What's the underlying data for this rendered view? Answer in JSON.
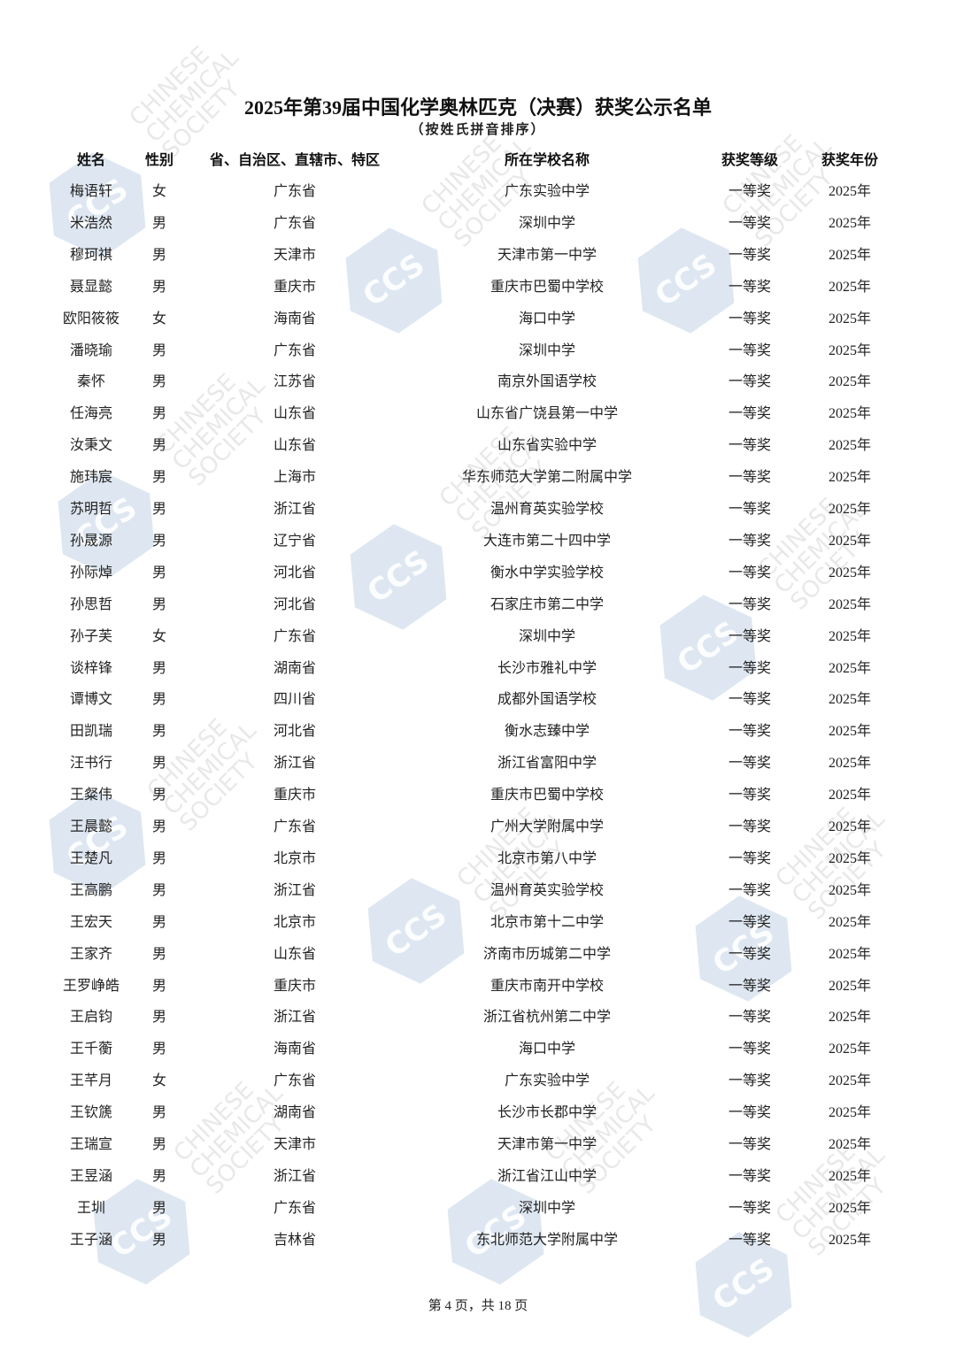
{
  "document": {
    "title": "2025年第39届中国化学奥林匹克（决赛）获奖公示名单",
    "subtitle": "（按姓氏拼音排序）",
    "footer": "第 4 页，共 18 页",
    "watermark_logo": "CCS",
    "watermark_text": "CHINESE\nCHEMICAL\nSOCIETY"
  },
  "table": {
    "headers": [
      "姓名",
      "性别",
      "省、自治区、直辖市、特区",
      "所在学校名称",
      "获奖等级",
      "获奖年份"
    ],
    "rows": [
      [
        "梅语轩",
        "女",
        "广东省",
        "广东实验中学",
        "一等奖",
        "2025年"
      ],
      [
        "米浩然",
        "男",
        "广东省",
        "深圳中学",
        "一等奖",
        "2025年"
      ],
      [
        "穆珂祺",
        "男",
        "天津市",
        "天津市第一中学",
        "一等奖",
        "2025年"
      ],
      [
        "聂显懿",
        "男",
        "重庆市",
        "重庆市巴蜀中学校",
        "一等奖",
        "2025年"
      ],
      [
        "欧阳筱筱",
        "女",
        "海南省",
        "海口中学",
        "一等奖",
        "2025年"
      ],
      [
        "潘晓瑜",
        "男",
        "广东省",
        "深圳中学",
        "一等奖",
        "2025年"
      ],
      [
        "秦怀",
        "男",
        "江苏省",
        "南京外国语学校",
        "一等奖",
        "2025年"
      ],
      [
        "任海亮",
        "男",
        "山东省",
        "山东省广饶县第一中学",
        "一等奖",
        "2025年"
      ],
      [
        "汝秉文",
        "男",
        "山东省",
        "山东省实验中学",
        "一等奖",
        "2025年"
      ],
      [
        "施玮宸",
        "男",
        "上海市",
        "华东师范大学第二附属中学",
        "一等奖",
        "2025年"
      ],
      [
        "苏明哲",
        "男",
        "浙江省",
        "温州育英实验学校",
        "一等奖",
        "2025年"
      ],
      [
        "孙晟源",
        "男",
        "辽宁省",
        "大连市第二十四中学",
        "一等奖",
        "2025年"
      ],
      [
        "孙际焯",
        "男",
        "河北省",
        "衡水中学实验学校",
        "一等奖",
        "2025年"
      ],
      [
        "孙思哲",
        "男",
        "河北省",
        "石家庄市第二中学",
        "一等奖",
        "2025年"
      ],
      [
        "孙子芙",
        "女",
        "广东省",
        "深圳中学",
        "一等奖",
        "2025年"
      ],
      [
        "谈梓锋",
        "男",
        "湖南省",
        "长沙市雅礼中学",
        "一等奖",
        "2025年"
      ],
      [
        "谭博文",
        "男",
        "四川省",
        "成都外国语学校",
        "一等奖",
        "2025年"
      ],
      [
        "田凯瑞",
        "男",
        "河北省",
        "衡水志臻中学",
        "一等奖",
        "2025年"
      ],
      [
        "汪书行",
        "男",
        "浙江省",
        "浙江省富阳中学",
        "一等奖",
        "2025年"
      ],
      [
        "王粲伟",
        "男",
        "重庆市",
        "重庆市巴蜀中学校",
        "一等奖",
        "2025年"
      ],
      [
        "王晨懿",
        "男",
        "广东省",
        "广州大学附属中学",
        "一等奖",
        "2025年"
      ],
      [
        "王楚凡",
        "男",
        "北京市",
        "北京市第八中学",
        "一等奖",
        "2025年"
      ],
      [
        "王高鹏",
        "男",
        "浙江省",
        "温州育英实验学校",
        "一等奖",
        "2025年"
      ],
      [
        "王宏天",
        "男",
        "北京市",
        "北京市第十二中学",
        "一等奖",
        "2025年"
      ],
      [
        "王家齐",
        "男",
        "山东省",
        "济南市历城第二中学",
        "一等奖",
        "2025年"
      ],
      [
        "王罗峥皓",
        "男",
        "重庆市",
        "重庆市南开中学校",
        "一等奖",
        "2025年"
      ],
      [
        "王启钧",
        "男",
        "浙江省",
        "浙江省杭州第二中学",
        "一等奖",
        "2025年"
      ],
      [
        "王千蘅",
        "男",
        "海南省",
        "海口中学",
        "一等奖",
        "2025年"
      ],
      [
        "王芊月",
        "女",
        "广东省",
        "广东实验中学",
        "一等奖",
        "2025年"
      ],
      [
        "王钦篪",
        "男",
        "湖南省",
        "长沙市长郡中学",
        "一等奖",
        "2025年"
      ],
      [
        "王瑞宣",
        "男",
        "天津市",
        "天津市第一中学",
        "一等奖",
        "2025年"
      ],
      [
        "王昱涵",
        "男",
        "浙江省",
        "浙江省江山中学",
        "一等奖",
        "2025年"
      ],
      [
        "王圳",
        "男",
        "广东省",
        "深圳中学",
        "一等奖",
        "2025年"
      ],
      [
        "王子涵",
        "男",
        "吉林省",
        "东北师范大学附属中学",
        "一等奖",
        "2025年"
      ]
    ]
  }
}
